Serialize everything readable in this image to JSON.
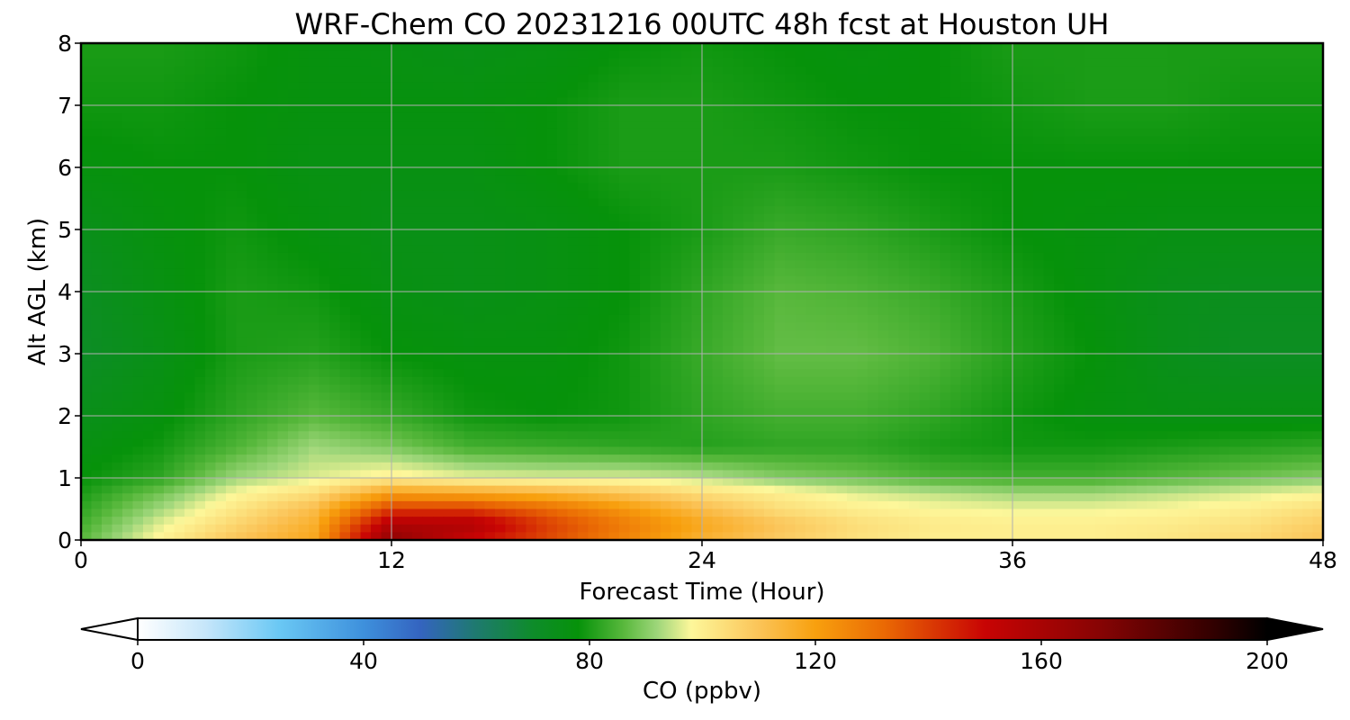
{
  "chart_data": {
    "type": "heatmap",
    "title": "WRF-Chem CO  20231216 00UTC 48h fcst at Houston UH",
    "xlabel": "Forecast Time (Hour)",
    "ylabel": "Alt AGL (km)",
    "xlim": [
      0,
      48
    ],
    "ylim": [
      0,
      8
    ],
    "xticks": [
      0,
      12,
      24,
      36,
      48
    ],
    "yticks": [
      0,
      1,
      2,
      3,
      4,
      5,
      6,
      7,
      8
    ],
    "grid": true,
    "colorbar": {
      "label": "CO  (ppbv)",
      "min": 0,
      "max": 200,
      "ticks": [
        0,
        40,
        80,
        120,
        160,
        200
      ],
      "extend": "both",
      "stops": [
        {
          "v": 0,
          "c": "#ffffff"
        },
        {
          "v": 12,
          "c": "#c6e6fa"
        },
        {
          "v": 25,
          "c": "#6ac8f4"
        },
        {
          "v": 40,
          "c": "#3e90dc"
        },
        {
          "v": 50,
          "c": "#3464c0"
        },
        {
          "v": 60,
          "c": "#1e7a6e"
        },
        {
          "v": 70,
          "c": "#0e8c2a"
        },
        {
          "v": 78,
          "c": "#06920a"
        },
        {
          "v": 86,
          "c": "#58b83c"
        },
        {
          "v": 92,
          "c": "#9ed67a"
        },
        {
          "v": 98,
          "c": "#fdf79a"
        },
        {
          "v": 110,
          "c": "#fbc458"
        },
        {
          "v": 120,
          "c": "#f8a00e"
        },
        {
          "v": 132,
          "c": "#ea6a04"
        },
        {
          "v": 150,
          "c": "#c80404"
        },
        {
          "v": 170,
          "c": "#880404"
        },
        {
          "v": 190,
          "c": "#340000"
        },
        {
          "v": 200,
          "c": "#000000"
        }
      ]
    },
    "grid_x": [
      0,
      3,
      6,
      9,
      12,
      15,
      18,
      21,
      24,
      27,
      30,
      33,
      36,
      39,
      42,
      45,
      48
    ],
    "grid_y": [
      0,
      0.25,
      0.5,
      0.75,
      1,
      1.5,
      2,
      3,
      4,
      5,
      6,
      7,
      8
    ],
    "z": [
      [
        86,
        99,
        110,
        118,
        168,
        150,
        138,
        126,
        115,
        108,
        103,
        100,
        100,
        100,
        102,
        105,
        110
      ],
      [
        84,
        96,
        106,
        116,
        158,
        158,
        140,
        128,
        118,
        110,
        104,
        101,
        100,
        100,
        101,
        103,
        108
      ],
      [
        82,
        92,
        102,
        112,
        140,
        140,
        132,
        122,
        112,
        104,
        100,
        98,
        97,
        97,
        98,
        100,
        104
      ],
      [
        80,
        88,
        98,
        104,
        120,
        118,
        115,
        110,
        104,
        100,
        96,
        94,
        92,
        92,
        94,
        96,
        98
      ],
      [
        78,
        82,
        92,
        96,
        100,
        97,
        96,
        96,
        94,
        90,
        88,
        85,
        84,
        84,
        86,
        88,
        90
      ],
      [
        76,
        79,
        85,
        92,
        89,
        84,
        83,
        82,
        81,
        82,
        82,
        80,
        79,
        79,
        80,
        81,
        82
      ],
      [
        74,
        77,
        82,
        86,
        83,
        79,
        78,
        79,
        82,
        84,
        84,
        82,
        79,
        77,
        76,
        76,
        76
      ],
      [
        71,
        75,
        80,
        81,
        78,
        77,
        77,
        79,
        83,
        87,
        87,
        85,
        81,
        78,
        74,
        72,
        72
      ],
      [
        72,
        76,
        80,
        79,
        76,
        75,
        76,
        78,
        82,
        86,
        85,
        83,
        80,
        77,
        74,
        73,
        73
      ],
      [
        74,
        77,
        79,
        77,
        75,
        75,
        76,
        78,
        80,
        83,
        82,
        80,
        78,
        77,
        76,
        76,
        76
      ],
      [
        77,
        78,
        78,
        76,
        76,
        76,
        78,
        80,
        80,
        80,
        79,
        78,
        78,
        78,
        78,
        78,
        78
      ],
      [
        79,
        79,
        78,
        77,
        77,
        77,
        78,
        80,
        80,
        79,
        78,
        78,
        79,
        80,
        80,
        79,
        79
      ],
      [
        80,
        80,
        79,
        77,
        76,
        75,
        76,
        78,
        79,
        78,
        77,
        78,
        80,
        80,
        80,
        80,
        80
      ]
    ]
  }
}
